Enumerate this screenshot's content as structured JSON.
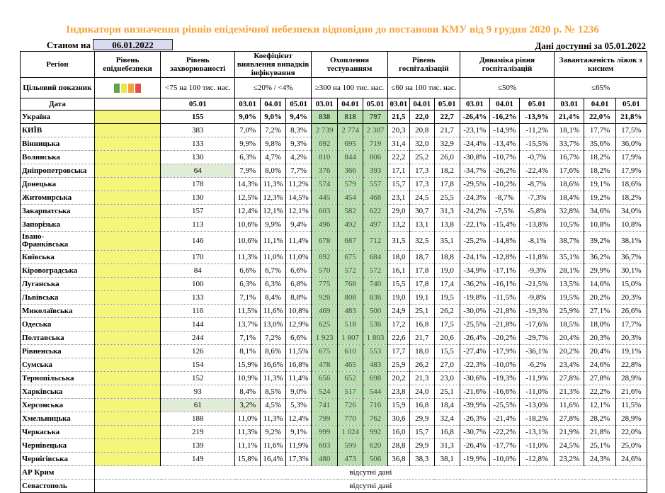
{
  "title": "Індикатори визначення рівнів епідемічної небезпеки відповідно до постанови КМУ від 9 грудня 2020 р. № 1236",
  "status": {
    "label": "Станом на",
    "date": "06.01.2022",
    "data_date": "Дані доступні за 05.01.2022"
  },
  "header": {
    "region": "Регіон",
    "level": "Рівень епіднебезпеки",
    "incidence": "Рівень захворюваності",
    "coef": "Коефіцієнт виявлення випадків інфікування",
    "testing": "Охоплення тестуванням",
    "hosp": "Рівень госпіталізацій",
    "dyn": "Динаміка рівня госпіталізацій",
    "beds": "Завантаженість ліжок з киснем",
    "target_label": "Цільовий показник",
    "incidence_target": "<75 на 100 тис. нас.",
    "coef_target": "≤20% / <4%",
    "testing_target": "≥300 на 100 тис. нас.",
    "hosp_target": "≤60 на 100 тис. нас.",
    "dyn_target": "≤50%",
    "beds_target": "≤65%",
    "date_label": "Дата",
    "d05": "05.01",
    "dates": [
      "03.01",
      "04.01",
      "05.01"
    ]
  },
  "legend_colors": [
    "#5aa64a",
    "#f0e24a",
    "#f2a23a",
    "#e0504a"
  ],
  "rows": [
    {
      "region": "Україна",
      "inc": "155",
      "coef": [
        "9,0%",
        "9,0%",
        "9,4%"
      ],
      "test": [
        "838",
        "818",
        "797"
      ],
      "hosp": [
        "21,5",
        "22,0",
        "22,7"
      ],
      "dyn": [
        "-26,4%",
        "-16,2%",
        "-13,9%"
      ],
      "beds": [
        "21,4%",
        "22,0%",
        "21,8%"
      ]
    },
    {
      "region": "КИЇВ",
      "inc": "383",
      "coef": [
        "7,0%",
        "7,2%",
        "8,3%"
      ],
      "test": [
        "2 739",
        "2 774",
        "2 387"
      ],
      "hosp": [
        "20,3",
        "20,8",
        "21,7"
      ],
      "dyn": [
        "-23,1%",
        "-14,9%",
        "-11,2%"
      ],
      "beds": [
        "18,1%",
        "17,7%",
        "17,5%"
      ]
    },
    {
      "region": "Вінницька",
      "inc": "133",
      "coef": [
        "9,9%",
        "9,8%",
        "9,3%"
      ],
      "test": [
        "692",
        "695",
        "719"
      ],
      "hosp": [
        "31,4",
        "32,0",
        "32,9"
      ],
      "dyn": [
        "-24,4%",
        "-13,4%",
        "-15,5%"
      ],
      "beds": [
        "33,7%",
        "35,6%",
        "36,0%"
      ]
    },
    {
      "region": "Волинська",
      "inc": "130",
      "coef": [
        "6,3%",
        "4,7%",
        "4,2%"
      ],
      "test": [
        "810",
        "844",
        "806"
      ],
      "hosp": [
        "22,2",
        "25,2",
        "26,0"
      ],
      "dyn": [
        "-30,8%",
        "-10,7%",
        "-0,7%"
      ],
      "beds": [
        "16,7%",
        "18,2%",
        "17,9%"
      ]
    },
    {
      "region": "Дніпропетровська",
      "inc": "64",
      "coef": [
        "7,9%",
        "8,0%",
        "7,7%"
      ],
      "test": [
        "376",
        "366",
        "393"
      ],
      "hosp": [
        "17,1",
        "17,3",
        "18,2"
      ],
      "dyn": [
        "-34,7%",
        "-26,2%",
        "-22,4%"
      ],
      "beds": [
        "17,6%",
        "18,2%",
        "17,9%"
      ]
    },
    {
      "region": "Донецька",
      "inc": "178",
      "coef": [
        "14,3%",
        "11,3%",
        "11,2%"
      ],
      "test": [
        "574",
        "579",
        "557"
      ],
      "hosp": [
        "15,7",
        "17,3",
        "17,8"
      ],
      "dyn": [
        "-29,5%",
        "-10,2%",
        "-8,7%"
      ],
      "beds": [
        "18,6%",
        "19,1%",
        "18,6%"
      ]
    },
    {
      "region": "Житомирська",
      "inc": "130",
      "coef": [
        "12,5%",
        "12,3%",
        "14,5%"
      ],
      "test": [
        "445",
        "454",
        "468"
      ],
      "hosp": [
        "23,1",
        "24,5",
        "25,5"
      ],
      "dyn": [
        "-24,3%",
        "-8,7%",
        "-7,3%"
      ],
      "beds": [
        "18,4%",
        "19,2%",
        "18,2%"
      ]
    },
    {
      "region": "Закарпатська",
      "inc": "157",
      "coef": [
        "12,4%",
        "12,1%",
        "12,1%"
      ],
      "test": [
        "603",
        "582",
        "622"
      ],
      "hosp": [
        "29,0",
        "30,7",
        "31,3"
      ],
      "dyn": [
        "-24,2%",
        "-7,5%",
        "-5,8%"
      ],
      "beds": [
        "32,8%",
        "34,6%",
        "34,0%"
      ]
    },
    {
      "region": "Запорізька",
      "inc": "113",
      "coef": [
        "10,6%",
        "9,9%",
        "9,4%"
      ],
      "test": [
        "496",
        "492",
        "497"
      ],
      "hosp": [
        "13,2",
        "13,1",
        "13,8"
      ],
      "dyn": [
        "-22,1%",
        "-15,4%",
        "-13,8%"
      ],
      "beds": [
        "10,5%",
        "10,8%",
        "10,8%"
      ]
    },
    {
      "region": "Івано-Франківська",
      "region_l1": "Івано-",
      "region_l2": "Франківська",
      "inc": "146",
      "coef": [
        "10,6%",
        "11,1%",
        "11,4%"
      ],
      "test": [
        "678",
        "687",
        "712"
      ],
      "hosp": [
        "31,5",
        "32,5",
        "35,1"
      ],
      "dyn": [
        "-25,2%",
        "-14,8%",
        "-8,1%"
      ],
      "beds": [
        "38,7%",
        "39,2%",
        "38,1%"
      ]
    },
    {
      "region": "Київська",
      "inc": "170",
      "coef": [
        "11,3%",
        "11,0%",
        "11,0%"
      ],
      "test": [
        "692",
        "675",
        "684"
      ],
      "hosp": [
        "18,0",
        "18,7",
        "18,8"
      ],
      "dyn": [
        "-24,1%",
        "-12,8%",
        "-11,8%"
      ],
      "beds": [
        "35,1%",
        "36,2%",
        "36,7%"
      ]
    },
    {
      "region": "Кіровоградська",
      "inc": "84",
      "coef": [
        "6,6%",
        "6,7%",
        "6,6%"
      ],
      "test": [
        "570",
        "572",
        "572"
      ],
      "hosp": [
        "16,1",
        "17,8",
        "19,0"
      ],
      "dyn": [
        "-34,9%",
        "-17,1%",
        "-9,3%"
      ],
      "beds": [
        "28,1%",
        "29,9%",
        "30,1%"
      ]
    },
    {
      "region": "Луганська",
      "inc": "100",
      "coef": [
        "6,3%",
        "6,3%",
        "6,8%"
      ],
      "test": [
        "775",
        "768",
        "740"
      ],
      "hosp": [
        "15,5",
        "17,8",
        "17,4"
      ],
      "dyn": [
        "-36,2%",
        "-16,1%",
        "-21,5%"
      ],
      "beds": [
        "13,5%",
        "14,6%",
        "15,0%"
      ]
    },
    {
      "region": "Львівська",
      "inc": "133",
      "coef": [
        "7,1%",
        "8,4%",
        "8,8%"
      ],
      "test": [
        "926",
        "808",
        "836"
      ],
      "hosp": [
        "19,0",
        "19,1",
        "19,5"
      ],
      "dyn": [
        "-19,8%",
        "-11,5%",
        "-9,8%"
      ],
      "beds": [
        "19,5%",
        "20,2%",
        "20,3%"
      ]
    },
    {
      "region": "Миколаївська",
      "inc": "116",
      "coef": [
        "11,5%",
        "11,6%",
        "10,8%"
      ],
      "test": [
        "469",
        "483",
        "500"
      ],
      "hosp": [
        "24,9",
        "25,1",
        "26,2"
      ],
      "dyn": [
        "-30,0%",
        "-21,8%",
        "-19,3%"
      ],
      "beds": [
        "25,9%",
        "27,1%",
        "26,6%"
      ]
    },
    {
      "region": "Одеська",
      "inc": "144",
      "coef": [
        "13,7%",
        "13,0%",
        "12,9%"
      ],
      "test": [
        "625",
        "518",
        "536"
      ],
      "hosp": [
        "17,2",
        "16,8",
        "17,5"
      ],
      "dyn": [
        "-25,5%",
        "-21,8%",
        "-17,6%"
      ],
      "beds": [
        "18,5%",
        "18,0%",
        "17,7%"
      ]
    },
    {
      "region": "Полтавська",
      "inc": "244",
      "coef": [
        "7,1%",
        "7,2%",
        "6,6%"
      ],
      "test": [
        "1 923",
        "1 807",
        "1 803"
      ],
      "hosp": [
        "22,6",
        "21,7",
        "20,6"
      ],
      "dyn": [
        "-26,4%",
        "-20,2%",
        "-29,7%"
      ],
      "beds": [
        "20,4%",
        "20,3%",
        "20,3%"
      ]
    },
    {
      "region": "Рівненська",
      "inc": "126",
      "coef": [
        "8,1%",
        "8,6%",
        "11,5%"
      ],
      "test": [
        "675",
        "610",
        "553"
      ],
      "hosp": [
        "17,7",
        "18,0",
        "15,5"
      ],
      "dyn": [
        "-27,4%",
        "-17,9%",
        "-36,1%"
      ],
      "beds": [
        "20,2%",
        "20,4%",
        "19,1%"
      ]
    },
    {
      "region": "Сумська",
      "inc": "154",
      "coef": [
        "15,9%",
        "16,6%",
        "16,8%"
      ],
      "test": [
        "478",
        "465",
        "483"
      ],
      "hosp": [
        "25,9",
        "26,2",
        "27,0"
      ],
      "dyn": [
        "-22,3%",
        "-10,0%",
        "-6,2%"
      ],
      "beds": [
        "23,4%",
        "24,6%",
        "22,8%"
      ]
    },
    {
      "region": "Тернопільська",
      "inc": "152",
      "coef": [
        "10,9%",
        "11,3%",
        "11,4%"
      ],
      "test": [
        "656",
        "652",
        "698"
      ],
      "hosp": [
        "20,2",
        "21,3",
        "23,0"
      ],
      "dyn": [
        "-30,6%",
        "-19,3%",
        "-11,9%"
      ],
      "beds": [
        "27,8%",
        "27,8%",
        "28,9%"
      ]
    },
    {
      "region": "Харківська",
      "inc": "93",
      "coef": [
        "8,4%",
        "8,5%",
        "9,0%"
      ],
      "test": [
        "524",
        "517",
        "544"
      ],
      "hosp": [
        "23,8",
        "24,0",
        "25,1"
      ],
      "dyn": [
        "-21,6%",
        "-16,6%",
        "-11,0%"
      ],
      "beds": [
        "21,3%",
        "22,2%",
        "21,6%"
      ]
    },
    {
      "region": "Херсонська",
      "inc": "61",
      "coef": [
        "3,2%",
        "4,5%",
        "5,3%"
      ],
      "test": [
        "741",
        "726",
        "716"
      ],
      "hosp": [
        "15,9",
        "16,8",
        "18,4"
      ],
      "dyn": [
        "-39,9%",
        "-25,5%",
        "-13,0%"
      ],
      "beds": [
        "11,6%",
        "12,1%",
        "11,5%"
      ]
    },
    {
      "region": "Хмельницька",
      "inc": "188",
      "coef": [
        "11,0%",
        "11,3%",
        "12,4%"
      ],
      "test": [
        "799",
        "770",
        "762"
      ],
      "hosp": [
        "30,6",
        "29,9",
        "32,4"
      ],
      "dyn": [
        "-26,3%",
        "-21,4%",
        "-18,2%"
      ],
      "beds": [
        "27,8%",
        "28,2%",
        "28,9%"
      ]
    },
    {
      "region": "Черкаська",
      "inc": "219",
      "coef": [
        "11,3%",
        "9,2%",
        "9,1%"
      ],
      "test": [
        "999",
        "1 024",
        "992"
      ],
      "hosp": [
        "16,0",
        "15,7",
        "16,8"
      ],
      "dyn": [
        "-30,7%",
        "-22,2%",
        "-13,1%"
      ],
      "beds": [
        "21,9%",
        "21,8%",
        "22,0%"
      ]
    },
    {
      "region": "Чернівецька",
      "inc": "139",
      "coef": [
        "11,1%",
        "11,6%",
        "11,9%"
      ],
      "test": [
        "603",
        "599",
        "620"
      ],
      "hosp": [
        "28,8",
        "29,9",
        "31,3"
      ],
      "dyn": [
        "-26,4%",
        "-17,7%",
        "-11,0%"
      ],
      "beds": [
        "24,5%",
        "25,1%",
        "25,0%"
      ]
    },
    {
      "region": "Чернігівська",
      "inc": "149",
      "coef": [
        "15,8%",
        "16,4%",
        "17,3%"
      ],
      "test": [
        "480",
        "473",
        "506"
      ],
      "hosp": [
        "36,8",
        "38,3",
        "38,1"
      ],
      "dyn": [
        "-19,9%",
        "-10,0%",
        "-12,8%"
      ],
      "beds": [
        "23,2%",
        "24,3%",
        "24,6%"
      ]
    }
  ],
  "missing": [
    {
      "region": "АР Крим",
      "note": "відсутні дані"
    },
    {
      "region": "Севастополь",
      "note": "відсутні дані"
    }
  ]
}
